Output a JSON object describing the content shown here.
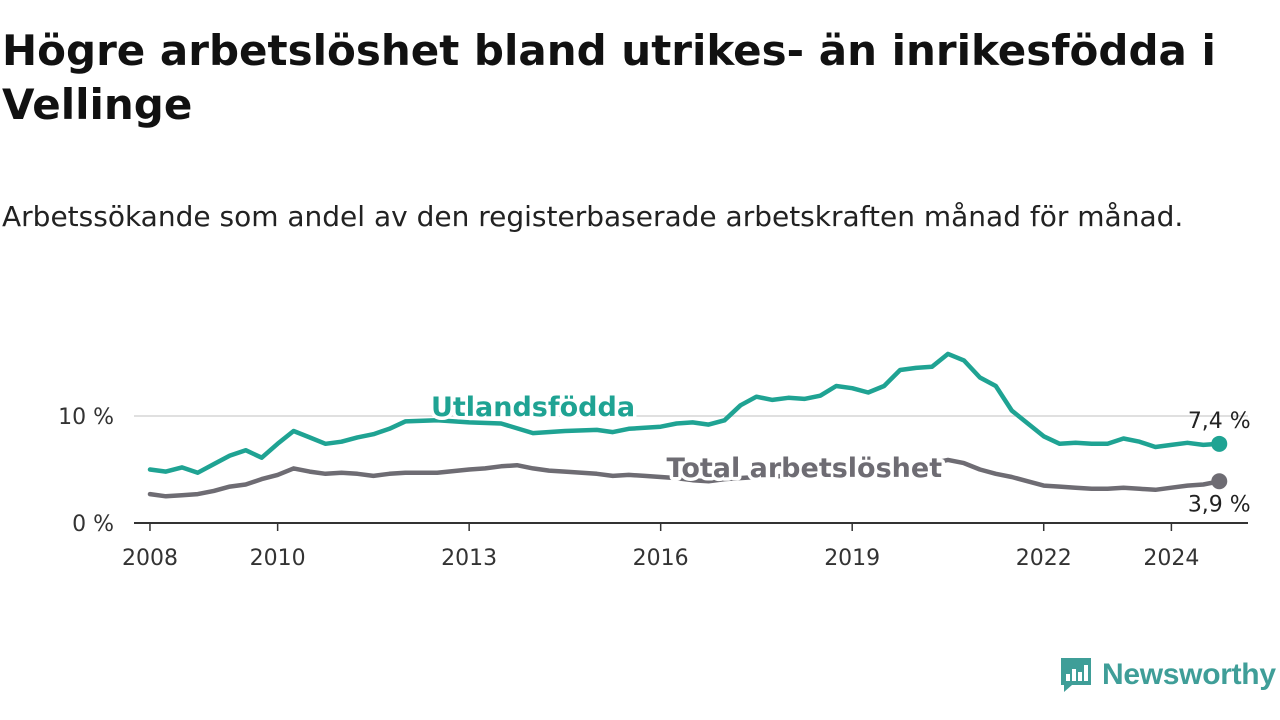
{
  "header": {
    "title": "Högre arbetslöshet bland utrikes- än inrikesfödda i Vellinge",
    "subtitle": "Arbetssökande som andel av den registerbaserade arbetskraften månad för månad."
  },
  "brand": {
    "name": "Newsworthy",
    "icon": "newsworthy-chart-icon",
    "color": "#3f9e98"
  },
  "chart_data": {
    "type": "line",
    "xlim": [
      2007.75,
      2025.2
    ],
    "ylim": [
      0,
      20
    ],
    "y_ticks": [
      0,
      10
    ],
    "y_tick_labels": [
      "0 %",
      "10 %"
    ],
    "x_ticks": [
      2008,
      2010,
      2013,
      2016,
      2019,
      2022,
      2024
    ],
    "x_tick_labels": [
      "2008",
      "2010",
      "2013",
      "2016",
      "2019",
      "2022",
      "2024"
    ],
    "grid": true,
    "series": [
      {
        "name": "Utlandsfödda",
        "color": "#1fa393",
        "end_label": "7,4 %",
        "points": [
          [
            2008.0,
            5.0
          ],
          [
            2008.25,
            4.8
          ],
          [
            2008.5,
            5.2
          ],
          [
            2008.75,
            4.7
          ],
          [
            2009.0,
            5.5
          ],
          [
            2009.25,
            6.3
          ],
          [
            2009.5,
            6.8
          ],
          [
            2009.75,
            6.1
          ],
          [
            2010.0,
            7.4
          ],
          [
            2010.25,
            8.6
          ],
          [
            2010.5,
            8.0
          ],
          [
            2010.75,
            7.4
          ],
          [
            2011.0,
            7.6
          ],
          [
            2011.25,
            8.0
          ],
          [
            2011.5,
            8.3
          ],
          [
            2011.75,
            8.8
          ],
          [
            2012.0,
            9.5
          ],
          [
            2012.5,
            9.6
          ],
          [
            2013.0,
            9.4
          ],
          [
            2013.5,
            9.3
          ],
          [
            2014.0,
            8.4
          ],
          [
            2014.5,
            8.6
          ],
          [
            2015.0,
            8.7
          ],
          [
            2015.25,
            8.5
          ],
          [
            2015.5,
            8.8
          ],
          [
            2015.75,
            8.9
          ],
          [
            2016.0,
            9.0
          ],
          [
            2016.25,
            9.3
          ],
          [
            2016.5,
            9.4
          ],
          [
            2016.75,
            9.2
          ],
          [
            2017.0,
            9.6
          ],
          [
            2017.25,
            11.0
          ],
          [
            2017.5,
            11.8
          ],
          [
            2017.75,
            11.5
          ],
          [
            2018.0,
            11.7
          ],
          [
            2018.25,
            11.6
          ],
          [
            2018.5,
            11.9
          ],
          [
            2018.75,
            12.8
          ],
          [
            2019.0,
            12.6
          ],
          [
            2019.25,
            12.2
          ],
          [
            2019.5,
            12.8
          ],
          [
            2019.75,
            14.3
          ],
          [
            2020.0,
            14.5
          ],
          [
            2020.25,
            14.6
          ],
          [
            2020.5,
            15.8
          ],
          [
            2020.75,
            15.2
          ],
          [
            2021.0,
            13.6
          ],
          [
            2021.25,
            12.8
          ],
          [
            2021.5,
            10.5
          ],
          [
            2021.75,
            9.3
          ],
          [
            2022.0,
            8.1
          ],
          [
            2022.25,
            7.4
          ],
          [
            2022.5,
            7.5
          ],
          [
            2022.75,
            7.4
          ],
          [
            2023.0,
            7.4
          ],
          [
            2023.25,
            7.9
          ],
          [
            2023.5,
            7.6
          ],
          [
            2023.75,
            7.1
          ],
          [
            2024.0,
            7.3
          ],
          [
            2024.25,
            7.5
          ],
          [
            2024.5,
            7.3
          ],
          [
            2024.75,
            7.4
          ]
        ]
      },
      {
        "name": "Total arbetslöshet",
        "color": "#6e6c73",
        "end_label": "3,9 %",
        "points": [
          [
            2008.0,
            2.7
          ],
          [
            2008.25,
            2.5
          ],
          [
            2008.5,
            2.6
          ],
          [
            2008.75,
            2.7
          ],
          [
            2009.0,
            3.0
          ],
          [
            2009.25,
            3.4
          ],
          [
            2009.5,
            3.6
          ],
          [
            2009.75,
            4.1
          ],
          [
            2010.0,
            4.5
          ],
          [
            2010.25,
            5.1
          ],
          [
            2010.5,
            4.8
          ],
          [
            2010.75,
            4.6
          ],
          [
            2011.0,
            4.7
          ],
          [
            2011.25,
            4.6
          ],
          [
            2011.5,
            4.4
          ],
          [
            2011.75,
            4.6
          ],
          [
            2012.0,
            4.7
          ],
          [
            2012.5,
            4.7
          ],
          [
            2013.0,
            5.0
          ],
          [
            2013.25,
            5.1
          ],
          [
            2013.5,
            5.3
          ],
          [
            2013.75,
            5.4
          ],
          [
            2014.0,
            5.1
          ],
          [
            2014.25,
            4.9
          ],
          [
            2014.5,
            4.8
          ],
          [
            2015.0,
            4.6
          ],
          [
            2015.25,
            4.4
          ],
          [
            2015.5,
            4.5
          ],
          [
            2015.75,
            4.4
          ],
          [
            2016.0,
            4.3
          ],
          [
            2016.25,
            4.2
          ],
          [
            2016.5,
            4.0
          ],
          [
            2016.75,
            3.9
          ],
          [
            2017.0,
            4.1
          ],
          [
            2017.5,
            4.3
          ],
          [
            2018.0,
            4.4
          ],
          [
            2018.5,
            4.6
          ],
          [
            2019.0,
            4.8
          ],
          [
            2019.5,
            5.0
          ],
          [
            2020.0,
            5.3
          ],
          [
            2020.5,
            5.9
          ],
          [
            2020.75,
            5.6
          ],
          [
            2021.0,
            5.0
          ],
          [
            2021.25,
            4.6
          ],
          [
            2021.5,
            4.3
          ],
          [
            2021.75,
            3.9
          ],
          [
            2022.0,
            3.5
          ],
          [
            2022.25,
            3.4
          ],
          [
            2022.5,
            3.3
          ],
          [
            2022.75,
            3.2
          ],
          [
            2023.0,
            3.2
          ],
          [
            2023.25,
            3.3
          ],
          [
            2023.5,
            3.2
          ],
          [
            2023.75,
            3.1
          ],
          [
            2024.0,
            3.3
          ],
          [
            2024.25,
            3.5
          ],
          [
            2024.5,
            3.6
          ],
          [
            2024.75,
            3.9
          ]
        ]
      }
    ]
  }
}
